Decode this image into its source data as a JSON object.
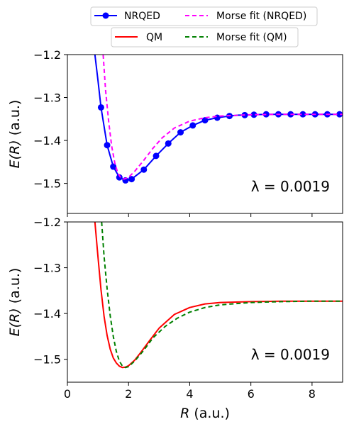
{
  "chart_data": [
    {
      "type": "line",
      "panel": "top",
      "xlim": [
        0,
        9
      ],
      "ylim": [
        -1.57,
        -1.2
      ],
      "yticks": [
        -1.2,
        -1.3,
        -1.4,
        -1.5
      ],
      "ytick_labels": [
        "−1.2",
        "−1.3",
        "−1.4",
        "−1.5"
      ],
      "ylabel_italic": "E(R)",
      "ylabel_rest": "(a.u.)",
      "annotation": "λ = 0.0019",
      "grid": false,
      "legend": "top, two rows, two columns",
      "series": [
        {
          "name": "NRQED",
          "color": "#0000ff",
          "style": "solid-with-markers",
          "x": [
            0.9,
            1.0,
            1.1,
            1.3,
            1.5,
            1.7,
            1.9,
            2.1,
            2.5,
            2.9,
            3.3,
            3.7,
            4.1,
            4.5,
            4.9,
            5.3,
            5.6,
            5.8,
            6.1,
            6.5,
            6.9,
            7.3,
            7.7,
            8.1,
            8.5,
            8.9
          ],
          "y": [
            -1.2,
            -1.26,
            -1.323,
            -1.411,
            -1.461,
            -1.486,
            -1.493,
            -1.49,
            -1.468,
            -1.436,
            -1.407,
            -1.381,
            -1.365,
            -1.353,
            -1.347,
            -1.343,
            -1.341,
            -1.341,
            -1.34,
            -1.339,
            -1.339,
            -1.339,
            -1.339,
            -1.339,
            -1.339,
            -1.339
          ],
          "markers_x": [
            1.1,
            1.3,
            1.5,
            1.7,
            1.9,
            2.1,
            2.5,
            2.9,
            3.3,
            3.7,
            4.1,
            4.5,
            4.9,
            5.3,
            5.8,
            6.1,
            6.5,
            6.9,
            7.3,
            7.7,
            8.1,
            8.5,
            8.9
          ],
          "markers_y": [
            -1.323,
            -1.411,
            -1.461,
            -1.486,
            -1.493,
            -1.49,
            -1.468,
            -1.436,
            -1.407,
            -1.381,
            -1.365,
            -1.353,
            -1.347,
            -1.343,
            -1.341,
            -1.34,
            -1.339,
            -1.339,
            -1.339,
            -1.339,
            -1.339,
            -1.339,
            -1.339
          ]
        },
        {
          "name": "Morse fit (NRQED)",
          "color": "#ff00ff",
          "style": "dashed",
          "x": [
            1.17,
            1.25,
            1.35,
            1.45,
            1.55,
            1.65,
            1.75,
            1.85,
            2.0,
            2.2,
            2.5,
            2.8,
            3.1,
            3.5,
            4.0,
            4.5,
            5.0,
            6.0,
            7.0,
            8.0,
            9.0
          ],
          "y": [
            -1.2,
            -1.284,
            -1.356,
            -1.414,
            -1.452,
            -1.476,
            -1.487,
            -1.49,
            -1.486,
            -1.472,
            -1.446,
            -1.418,
            -1.394,
            -1.371,
            -1.355,
            -1.347,
            -1.343,
            -1.34,
            -1.339,
            -1.339,
            -1.339
          ]
        }
      ]
    },
    {
      "type": "line",
      "panel": "bottom",
      "xlim": [
        0,
        9
      ],
      "ylim": [
        -1.55,
        -1.2
      ],
      "xticks": [
        0,
        2,
        4,
        6,
        8
      ],
      "xtick_labels": [
        "0",
        "2",
        "4",
        "6",
        "8"
      ],
      "yticks": [
        -1.2,
        -1.3,
        -1.4,
        -1.5
      ],
      "ytick_labels": [
        "−1.2",
        "−1.3",
        "−1.4",
        "−1.5"
      ],
      "xlabel_italic": "R",
      "xlabel_rest": "(a.u.)",
      "ylabel_italic": "E(R)",
      "ylabel_rest": "(a.u.)",
      "annotation": "λ = 0.0019",
      "grid": false,
      "series": [
        {
          "name": "QM",
          "color": "#ff0000",
          "style": "solid",
          "x": [
            0.9,
            1.0,
            1.1,
            1.2,
            1.3,
            1.4,
            1.5,
            1.6,
            1.7,
            1.8,
            1.9,
            2.0,
            2.2,
            2.4,
            2.7,
            3.0,
            3.5,
            4.0,
            4.5,
            5.0,
            6.0,
            7.0,
            8.0,
            9.0
          ],
          "y": [
            -1.2,
            -1.276,
            -1.348,
            -1.406,
            -1.448,
            -1.478,
            -1.497,
            -1.508,
            -1.515,
            -1.518,
            -1.517,
            -1.514,
            -1.502,
            -1.485,
            -1.458,
            -1.432,
            -1.402,
            -1.387,
            -1.379,
            -1.376,
            -1.374,
            -1.373,
            -1.373,
            -1.373
          ]
        },
        {
          "name": "Morse fit (QM)",
          "color": "#008000",
          "style": "dashed",
          "x": [
            1.12,
            1.2,
            1.3,
            1.4,
            1.5,
            1.6,
            1.7,
            1.8,
            1.9,
            2.0,
            2.2,
            2.5,
            2.8,
            3.2,
            3.6,
            4.0,
            4.5,
            5.0,
            6.0,
            7.0,
            8.0,
            9.0
          ],
          "y": [
            -1.2,
            -1.275,
            -1.346,
            -1.405,
            -1.45,
            -1.483,
            -1.504,
            -1.515,
            -1.518,
            -1.516,
            -1.504,
            -1.48,
            -1.453,
            -1.428,
            -1.41,
            -1.397,
            -1.387,
            -1.381,
            -1.376,
            -1.374,
            -1.373,
            -1.373
          ]
        }
      ]
    }
  ],
  "legend": {
    "row1": [
      "NRQED",
      "Morse fit (NRQED)"
    ],
    "row2": [
      "QM",
      "Morse fit (QM)"
    ]
  }
}
